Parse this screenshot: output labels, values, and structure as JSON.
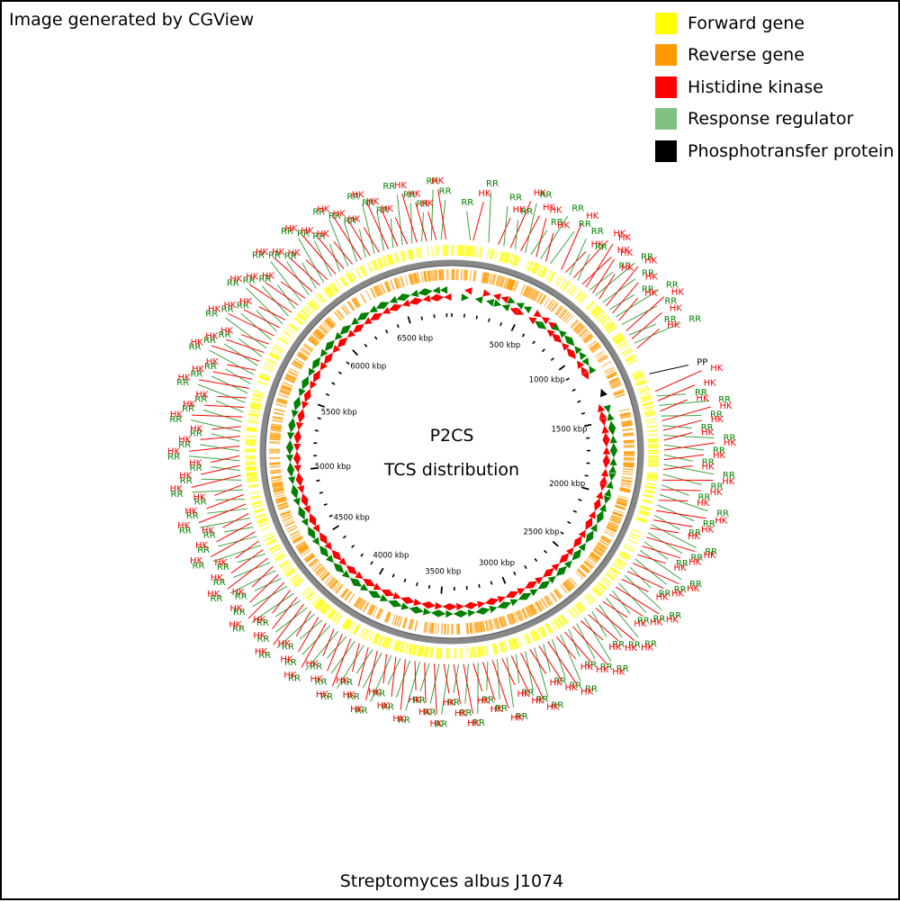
{
  "generator_note": "Image generated by CGView",
  "center": {
    "line1": "P2CS",
    "line2": "TCS distribution"
  },
  "organism": "Streptomyces albus J1074",
  "legend": [
    {
      "label": "Forward gene",
      "color": "#ffff00"
    },
    {
      "label": "Reverse gene",
      "color": "#ff9900"
    },
    {
      "label": "Histidine kinase",
      "color": "#ff0000"
    },
    {
      "label": "Response regulator",
      "color": "#80c080"
    },
    {
      "label": "Phosphotransfer protein",
      "color": "#000000"
    }
  ],
  "chart_data": {
    "type": "circular_genome_map",
    "genome_length_kbp": 6840,
    "tick_labels": [
      {
        "kbp": 500,
        "label": "500 kbp"
      },
      {
        "kbp": 1000,
        "label": "1000 kbp"
      },
      {
        "kbp": 1500,
        "label": "1500 kbp"
      },
      {
        "kbp": 2000,
        "label": "2000 kbp"
      },
      {
        "kbp": 2500,
        "label": "2500 kbp"
      },
      {
        "kbp": 3000,
        "label": "3000 kbp"
      },
      {
        "kbp": 3500,
        "label": "3500 kbp"
      },
      {
        "kbp": 4000,
        "label": "4000 kbp"
      },
      {
        "kbp": 4500,
        "label": "4500 kbp"
      },
      {
        "kbp": 5000,
        "label": "5000 kbp"
      },
      {
        "kbp": 5500,
        "label": "5500 kbp"
      },
      {
        "kbp": 6000,
        "label": "6000 kbp"
      },
      {
        "kbp": 6500,
        "label": "6500 kbp"
      }
    ],
    "features": [
      {
        "kbp": 95,
        "label": "RR"
      },
      {
        "kbp": 110,
        "label": "HK"
      },
      {
        "kbp": 190,
        "label": "RR"
      },
      {
        "kbp": 240,
        "label": "HK"
      },
      {
        "kbp": 270,
        "label": "RR"
      },
      {
        "kbp": 305,
        "label": "HK"
      },
      {
        "kbp": 330,
        "label": "RR"
      },
      {
        "kbp": 360,
        "label": "HK"
      },
      {
        "kbp": 385,
        "label": "RR"
      },
      {
        "kbp": 415,
        "label": "RR"
      },
      {
        "kbp": 445,
        "label": "HK"
      },
      {
        "kbp": 470,
        "label": "RR"
      },
      {
        "kbp": 500,
        "label": "HK"
      },
      {
        "kbp": 525,
        "label": "RR"
      },
      {
        "kbp": 590,
        "label": "HK"
      },
      {
        "kbp": 615,
        "label": "HK"
      },
      {
        "kbp": 640,
        "label": "RR"
      },
      {
        "kbp": 665,
        "label": "HK"
      },
      {
        "kbp": 690,
        "label": "RR"
      },
      {
        "kbp": 720,
        "label": "HK"
      },
      {
        "kbp": 745,
        "label": "HK"
      },
      {
        "kbp": 768,
        "label": "RR"
      },
      {
        "kbp": 790,
        "label": "HK"
      },
      {
        "kbp": 810,
        "label": "RR"
      },
      {
        "kbp": 835,
        "label": "HK"
      },
      {
        "kbp": 860,
        "label": "RR"
      },
      {
        "kbp": 885,
        "label": "HK"
      },
      {
        "kbp": 910,
        "label": "RR"
      },
      {
        "kbp": 935,
        "label": "HK"
      },
      {
        "kbp": 960,
        "label": "RR"
      },
      {
        "kbp": 985,
        "label": "HK"
      },
      {
        "kbp": 1010,
        "label": "RR"
      },
      {
        "kbp": 1050,
        "label": "HK"
      },
      {
        "kbp": 1075,
        "label": "RR"
      },
      {
        "kbp": 1100,
        "label": "HK"
      },
      {
        "kbp": 1125,
        "label": "RR"
      },
      {
        "kbp": 1155,
        "label": "HK"
      },
      {
        "kbp": 1300,
        "label": "PP"
      },
      {
        "kbp": 1395,
        "label": "HK"
      },
      {
        "kbp": 1420,
        "label": "RR"
      },
      {
        "kbp": 1445,
        "label": "HK"
      },
      {
        "kbp": 1470,
        "label": "RR"
      },
      {
        "kbp": 1500,
        "label": "HK"
      },
      {
        "kbp": 1525,
        "label": "RR"
      },
      {
        "kbp": 1550,
        "label": "HK"
      },
      {
        "kbp": 1575,
        "label": "RR"
      },
      {
        "kbp": 1600,
        "label": "HK"
      },
      {
        "kbp": 1625,
        "label": "RR"
      },
      {
        "kbp": 1650,
        "label": "HK"
      },
      {
        "kbp": 1675,
        "label": "RR"
      },
      {
        "kbp": 1700,
        "label": "HK"
      },
      {
        "kbp": 1725,
        "label": "RR"
      },
      {
        "kbp": 1750,
        "label": "HK"
      },
      {
        "kbp": 1775,
        "label": "RR"
      },
      {
        "kbp": 1800,
        "label": "HK"
      },
      {
        "kbp": 1825,
        "label": "RR"
      },
      {
        "kbp": 1855,
        "label": "HK"
      },
      {
        "kbp": 1880,
        "label": "RR"
      },
      {
        "kbp": 1905,
        "label": "HK"
      },
      {
        "kbp": 1930,
        "label": "RR"
      },
      {
        "kbp": 1960,
        "label": "HK"
      },
      {
        "kbp": 1985,
        "label": "RR"
      },
      {
        "kbp": 2015,
        "label": "HK"
      },
      {
        "kbp": 2040,
        "label": "RR"
      },
      {
        "kbp": 2065,
        "label": "HK"
      },
      {
        "kbp": 2090,
        "label": "RR"
      },
      {
        "kbp": 2110,
        "label": "HK"
      },
      {
        "kbp": 2135,
        "label": "RR"
      },
      {
        "kbp": 2160,
        "label": "HK"
      },
      {
        "kbp": 2185,
        "label": "RR"
      },
      {
        "kbp": 2210,
        "label": "HK"
      },
      {
        "kbp": 2235,
        "label": "RR"
      },
      {
        "kbp": 2260,
        "label": "HK"
      },
      {
        "kbp": 2285,
        "label": "RR"
      },
      {
        "kbp": 2310,
        "label": "HK"
      },
      {
        "kbp": 2335,
        "label": "RR"
      },
      {
        "kbp": 2360,
        "label": "HK"
      },
      {
        "kbp": 2385,
        "label": "RR"
      },
      {
        "kbp": 2410,
        "label": "HK"
      },
      {
        "kbp": 2435,
        "label": "RR"
      },
      {
        "kbp": 2460,
        "label": "HK"
      },
      {
        "kbp": 2485,
        "label": "RR"
      },
      {
        "kbp": 2510,
        "label": "HK"
      },
      {
        "kbp": 2535,
        "label": "RR"
      },
      {
        "kbp": 2560,
        "label": "HK"
      },
      {
        "kbp": 2585,
        "label": "RR"
      },
      {
        "kbp": 2610,
        "label": "HK"
      },
      {
        "kbp": 2635,
        "label": "RR"
      },
      {
        "kbp": 2660,
        "label": "HK"
      },
      {
        "kbp": 2685,
        "label": "RR"
      },
      {
        "kbp": 2710,
        "label": "HK"
      },
      {
        "kbp": 2735,
        "label": "RR"
      },
      {
        "kbp": 2760,
        "label": "HK"
      },
      {
        "kbp": 2785,
        "label": "RR"
      },
      {
        "kbp": 2810,
        "label": "HK"
      },
      {
        "kbp": 2835,
        "label": "RR"
      },
      {
        "kbp": 2860,
        "label": "HK"
      },
      {
        "kbp": 2885,
        "label": "RR"
      },
      {
        "kbp": 2910,
        "label": "HK"
      },
      {
        "kbp": 2935,
        "label": "RR"
      },
      {
        "kbp": 2960,
        "label": "HK"
      },
      {
        "kbp": 2985,
        "label": "RR"
      },
      {
        "kbp": 3010,
        "label": "HK"
      },
      {
        "kbp": 3035,
        "label": "RR"
      },
      {
        "kbp": 3060,
        "label": "HK"
      },
      {
        "kbp": 3085,
        "label": "RR"
      },
      {
        "kbp": 3110,
        "label": "HK"
      },
      {
        "kbp": 3135,
        "label": "RR"
      },
      {
        "kbp": 3160,
        "label": "HK"
      },
      {
        "kbp": 3185,
        "label": "RR"
      },
      {
        "kbp": 3210,
        "label": "HK"
      },
      {
        "kbp": 3235,
        "label": "RR"
      },
      {
        "kbp": 3260,
        "label": "HK"
      },
      {
        "kbp": 3285,
        "label": "RR"
      },
      {
        "kbp": 3310,
        "label": "HK"
      },
      {
        "kbp": 3335,
        "label": "RR"
      },
      {
        "kbp": 3360,
        "label": "HK"
      },
      {
        "kbp": 3385,
        "label": "RR"
      },
      {
        "kbp": 3410,
        "label": "HK"
      },
      {
        "kbp": 3435,
        "label": "RR"
      },
      {
        "kbp": 3460,
        "label": "HK"
      },
      {
        "kbp": 3485,
        "label": "RR"
      },
      {
        "kbp": 3510,
        "label": "HK"
      },
      {
        "kbp": 3535,
        "label": "RR"
      },
      {
        "kbp": 3560,
        "label": "HK"
      },
      {
        "kbp": 3585,
        "label": "RR"
      },
      {
        "kbp": 3610,
        "label": "HK"
      },
      {
        "kbp": 3635,
        "label": "RR"
      },
      {
        "kbp": 3660,
        "label": "HK"
      },
      {
        "kbp": 3685,
        "label": "RR"
      },
      {
        "kbp": 3710,
        "label": "HK"
      },
      {
        "kbp": 3735,
        "label": "RR"
      },
      {
        "kbp": 3760,
        "label": "HK"
      },
      {
        "kbp": 3785,
        "label": "RR"
      },
      {
        "kbp": 3810,
        "label": "HK"
      },
      {
        "kbp": 3835,
        "label": "RR"
      },
      {
        "kbp": 3860,
        "label": "HK"
      },
      {
        "kbp": 3885,
        "label": "RR"
      },
      {
        "kbp": 3910,
        "label": "HK"
      },
      {
        "kbp": 3935,
        "label": "RR"
      },
      {
        "kbp": 3960,
        "label": "HK"
      },
      {
        "kbp": 3985,
        "label": "RR"
      },
      {
        "kbp": 4010,
        "label": "HK"
      },
      {
        "kbp": 4035,
        "label": "RR"
      },
      {
        "kbp": 4060,
        "label": "HK"
      },
      {
        "kbp": 4085,
        "label": "RR"
      },
      {
        "kbp": 4110,
        "label": "HK"
      },
      {
        "kbp": 4135,
        "label": "RR"
      },
      {
        "kbp": 4160,
        "label": "HK"
      },
      {
        "kbp": 4185,
        "label": "RR"
      },
      {
        "kbp": 4210,
        "label": "HK"
      },
      {
        "kbp": 4235,
        "label": "RR"
      },
      {
        "kbp": 4260,
        "label": "HK"
      },
      {
        "kbp": 4285,
        "label": "RR"
      },
      {
        "kbp": 4310,
        "label": "HK"
      },
      {
        "kbp": 4335,
        "label": "RR"
      },
      {
        "kbp": 4360,
        "label": "HK"
      },
      {
        "kbp": 4385,
        "label": "RR"
      },
      {
        "kbp": 4410,
        "label": "HK"
      },
      {
        "kbp": 4435,
        "label": "RR"
      },
      {
        "kbp": 4460,
        "label": "HK"
      },
      {
        "kbp": 4485,
        "label": "RR"
      },
      {
        "kbp": 4510,
        "label": "HK"
      },
      {
        "kbp": 4535,
        "label": "RR"
      },
      {
        "kbp": 4560,
        "label": "HK"
      },
      {
        "kbp": 4585,
        "label": "RR"
      },
      {
        "kbp": 4610,
        "label": "HK"
      },
      {
        "kbp": 4635,
        "label": "RR"
      },
      {
        "kbp": 4660,
        "label": "HK"
      },
      {
        "kbp": 4685,
        "label": "RR"
      },
      {
        "kbp": 4710,
        "label": "HK"
      },
      {
        "kbp": 4735,
        "label": "RR"
      },
      {
        "kbp": 4760,
        "label": "HK"
      },
      {
        "kbp": 4785,
        "label": "RR"
      },
      {
        "kbp": 4810,
        "label": "HK"
      },
      {
        "kbp": 4835,
        "label": "RR"
      },
      {
        "kbp": 4860,
        "label": "HK"
      },
      {
        "kbp": 4885,
        "label": "RR"
      },
      {
        "kbp": 4910,
        "label": "HK"
      },
      {
        "kbp": 4935,
        "label": "RR"
      },
      {
        "kbp": 4960,
        "label": "HK"
      },
      {
        "kbp": 4985,
        "label": "RR"
      },
      {
        "kbp": 5010,
        "label": "HK"
      },
      {
        "kbp": 5035,
        "label": "RR"
      },
      {
        "kbp": 5060,
        "label": "HK"
      },
      {
        "kbp": 5085,
        "label": "RR"
      },
      {
        "kbp": 5110,
        "label": "HK"
      },
      {
        "kbp": 5135,
        "label": "RR"
      },
      {
        "kbp": 5160,
        "label": "HK"
      },
      {
        "kbp": 5185,
        "label": "RR"
      },
      {
        "kbp": 5210,
        "label": "HK"
      },
      {
        "kbp": 5235,
        "label": "RR"
      },
      {
        "kbp": 5260,
        "label": "HK"
      },
      {
        "kbp": 5285,
        "label": "RR"
      },
      {
        "kbp": 5310,
        "label": "HK"
      },
      {
        "kbp": 5335,
        "label": "RR"
      },
      {
        "kbp": 5360,
        "label": "HK"
      },
      {
        "kbp": 5385,
        "label": "RR"
      },
      {
        "kbp": 5410,
        "label": "HK"
      },
      {
        "kbp": 5435,
        "label": "RR"
      },
      {
        "kbp": 5460,
        "label": "HK"
      },
      {
        "kbp": 5485,
        "label": "RR"
      },
      {
        "kbp": 5510,
        "label": "HK"
      },
      {
        "kbp": 5535,
        "label": "RR"
      },
      {
        "kbp": 5560,
        "label": "HK"
      },
      {
        "kbp": 5585,
        "label": "RR"
      },
      {
        "kbp": 5610,
        "label": "HK"
      },
      {
        "kbp": 5635,
        "label": "RR"
      },
      {
        "kbp": 5660,
        "label": "HK"
      },
      {
        "kbp": 5685,
        "label": "RR"
      },
      {
        "kbp": 5710,
        "label": "HK"
      },
      {
        "kbp": 5735,
        "label": "RR"
      },
      {
        "kbp": 5760,
        "label": "HK"
      },
      {
        "kbp": 5785,
        "label": "RR"
      },
      {
        "kbp": 5810,
        "label": "HK"
      },
      {
        "kbp": 5835,
        "label": "RR"
      },
      {
        "kbp": 5860,
        "label": "HK"
      },
      {
        "kbp": 5885,
        "label": "RR"
      },
      {
        "kbp": 5910,
        "label": "HK"
      },
      {
        "kbp": 5935,
        "label": "RR"
      },
      {
        "kbp": 5960,
        "label": "HK"
      },
      {
        "kbp": 5985,
        "label": "RR"
      },
      {
        "kbp": 6010,
        "label": "HK"
      },
      {
        "kbp": 6035,
        "label": "RR"
      },
      {
        "kbp": 6060,
        "label": "HK"
      },
      {
        "kbp": 6085,
        "label": "RR"
      },
      {
        "kbp": 6110,
        "label": "HK"
      },
      {
        "kbp": 6135,
        "label": "RR"
      },
      {
        "kbp": 6160,
        "label": "HK"
      },
      {
        "kbp": 6185,
        "label": "RR"
      },
      {
        "kbp": 6210,
        "label": "HK"
      },
      {
        "kbp": 6235,
        "label": "RR"
      },
      {
        "kbp": 6260,
        "label": "HK"
      },
      {
        "kbp": 6285,
        "label": "RR"
      },
      {
        "kbp": 6310,
        "label": "HK"
      },
      {
        "kbp": 6335,
        "label": "RR"
      },
      {
        "kbp": 6360,
        "label": "HK"
      },
      {
        "kbp": 6385,
        "label": "RR"
      },
      {
        "kbp": 6410,
        "label": "HK"
      },
      {
        "kbp": 6435,
        "label": "RR"
      },
      {
        "kbp": 6460,
        "label": "HK"
      },
      {
        "kbp": 6485,
        "label": "RR"
      },
      {
        "kbp": 6510,
        "label": "HK"
      },
      {
        "kbp": 6535,
        "label": "RR"
      },
      {
        "kbp": 6560,
        "label": "HK"
      },
      {
        "kbp": 6585,
        "label": "RR"
      },
      {
        "kbp": 6610,
        "label": "HK"
      },
      {
        "kbp": 6635,
        "label": "RR"
      },
      {
        "kbp": 6660,
        "label": "HK"
      },
      {
        "kbp": 6685,
        "label": "RR"
      },
      {
        "kbp": 6710,
        "label": "HK"
      },
      {
        "kbp": 6735,
        "label": "RR"
      },
      {
        "kbp": 6760,
        "label": "HK"
      },
      {
        "kbp": 6785,
        "label": "RR"
      },
      {
        "kbp": 6810,
        "label": "HK"
      }
    ]
  }
}
